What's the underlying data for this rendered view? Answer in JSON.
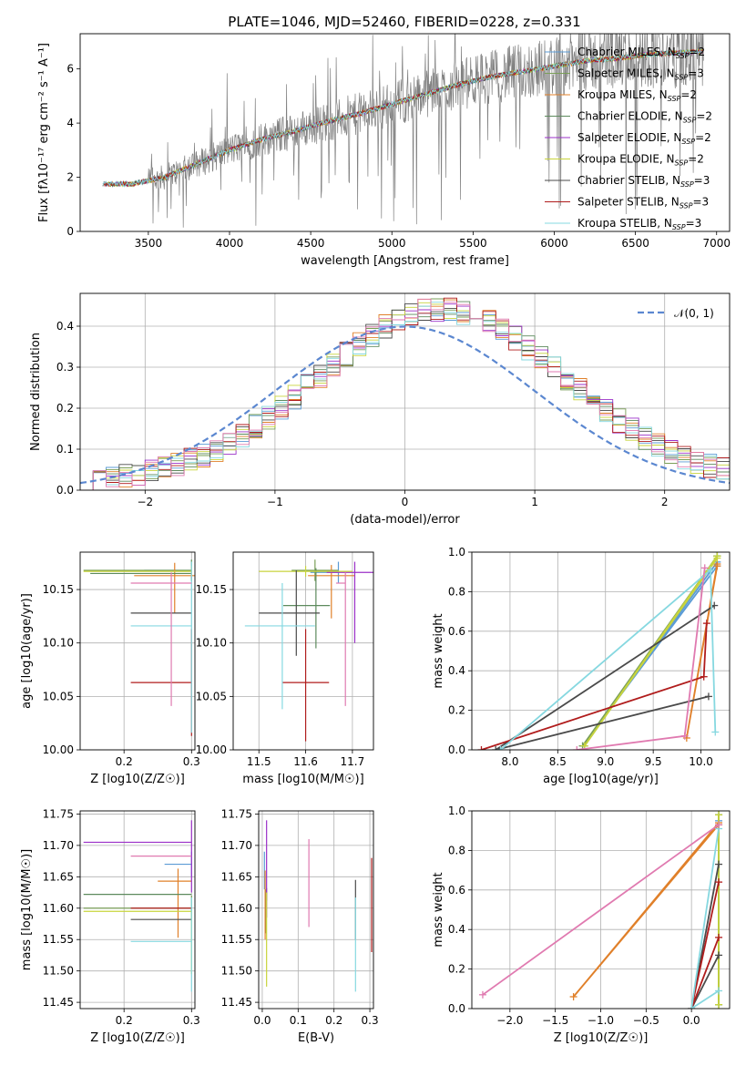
{
  "figure": {
    "title": "PLATE=1046, MJD=52460, FIBERID=0228, z=0.331"
  },
  "models": [
    {
      "name": "Chabrier MILES",
      "nssp": "2",
      "color": "#5b9bd5"
    },
    {
      "name": "Salpeter MILES",
      "nssp": "3",
      "color": "#7a9f58"
    },
    {
      "name": "Kroupa MILES",
      "nssp": "2",
      "color": "#e0802a"
    },
    {
      "name": "Chabrier ELODIE",
      "nssp": "2",
      "color": "#5d8a5d"
    },
    {
      "name": "Salpeter ELODIE",
      "nssp": "2",
      "color": "#9b30c8"
    },
    {
      "name": "Kroupa ELODIE",
      "nssp": "2",
      "color": "#c8d43c"
    },
    {
      "name": "Chabrier STELIB",
      "nssp": "3",
      "color": "#4a4a4a"
    },
    {
      "name": "Salpeter STELIB",
      "nssp": "3",
      "color": "#b01c1c"
    },
    {
      "name": "Kroupa STELIB",
      "nssp": "3",
      "color": "#86d8e0"
    }
  ],
  "pink_color": "#e07ab0",
  "chart_data": [
    {
      "id": "spectrum",
      "type": "line",
      "xlabel": "wavelength [Angstrom, rest frame]",
      "ylabel": "Flux [fλ10⁻¹⁷ erg cm⁻² s⁻¹ A⁻¹]",
      "xlim": [
        3080,
        7080
      ],
      "ylim": [
        0,
        7.3
      ],
      "xticks": [
        3500,
        4000,
        4500,
        5000,
        5500,
        6000,
        6500,
        7000
      ],
      "yticks": [
        0,
        2,
        4,
        6
      ],
      "data_color": "#808080",
      "x_start": 3220,
      "x_end": 6920,
      "continuum_points": [
        [
          3220,
          1.75
        ],
        [
          3400,
          1.75
        ],
        [
          3600,
          2.0
        ],
        [
          3800,
          2.5
        ],
        [
          4000,
          3.0
        ],
        [
          4200,
          3.4
        ],
        [
          4400,
          3.7
        ],
        [
          4600,
          4.05
        ],
        [
          4800,
          4.35
        ],
        [
          5000,
          4.7
        ],
        [
          5200,
          5.05
        ],
        [
          5400,
          5.4
        ],
        [
          5600,
          5.7
        ],
        [
          5800,
          5.9
        ],
        [
          6000,
          6.1
        ],
        [
          6200,
          6.3
        ],
        [
          6400,
          6.4
        ],
        [
          6600,
          6.55
        ],
        [
          6800,
          6.6
        ],
        [
          6920,
          6.65
        ]
      ],
      "legend_suffix": "N_SSP"
    },
    {
      "id": "residuals",
      "type": "histogram",
      "xlabel": "(data-model)/error",
      "ylabel": "Normed distribution",
      "xlim": [
        -2.5,
        2.5
      ],
      "ylim": [
        0,
        0.48
      ],
      "xticks": [
        -2,
        -1,
        0,
        1,
        2
      ],
      "yticks": [
        0.0,
        0.1,
        0.2,
        0.3,
        0.4
      ],
      "gauss_label": "𝒩(0, 1)",
      "gauss_mu": 0,
      "gauss_sigma": 1,
      "gauss_color": "#5b87d0"
    },
    {
      "id": "age_vs_Z",
      "type": "scatter",
      "xlabel": "Z [log10(Z/Z☉)]",
      "ylabel": "age  [log10(age/yr)]",
      "xlim": [
        0.135,
        0.305
      ],
      "ylim": [
        10.0,
        10.185
      ],
      "xticks": [
        0.2,
        0.3
      ],
      "yticks": [
        10.0,
        10.05,
        10.1,
        10.15
      ],
      "points": [
        {
          "m": 0,
          "x": 0.3,
          "xerr": [
            0.07,
            0.0
          ],
          "y": 10.168,
          "yerr": [
            0.01,
            0.01
          ]
        },
        {
          "m": 1,
          "x": 0.3,
          "xerr": [
            0.16,
            0.0
          ],
          "y": 10.168,
          "yerr": [
            0.01,
            0.01
          ]
        },
        {
          "m": 2,
          "x": 0.275,
          "xerr": [
            0.06,
            0.03
          ],
          "y": 10.163,
          "yerr": [
            0.035,
            0.012
          ]
        },
        {
          "m": 3,
          "x": 0.3,
          "xerr": [
            0.15,
            0.0
          ],
          "y": 10.165,
          "yerr": [
            0.005,
            0.005
          ]
        },
        {
          "m": 4,
          "x": 0.3,
          "xerr": [
            0.0,
            0.0
          ],
          "y": 10.166,
          "yerr": [
            0.005,
            0.005
          ]
        },
        {
          "m": 5,
          "x": 0.3,
          "xerr": [
            0.16,
            0.0
          ],
          "y": 10.167,
          "yerr": [
            0.005,
            0.005
          ]
        },
        {
          "m": 6,
          "x": 0.3,
          "xerr": [
            0.09,
            0.0
          ],
          "y": 10.128,
          "yerr": [
            0.0,
            0.0
          ]
        },
        {
          "m": 7,
          "x": 0.3,
          "xerr": [
            0.09,
            0.0
          ],
          "y": 10.063,
          "yerr": [
            0.05,
            0.05
          ]
        },
        {
          "m": 8,
          "x": 0.3,
          "xerr": [
            0.09,
            0.0
          ],
          "y": 10.116,
          "yerr": [
            0.1,
            0.06
          ]
        },
        {
          "m": "pink",
          "x": 0.27,
          "xerr": [
            0.06,
            0.03
          ],
          "y": 10.156,
          "yerr": [
            0.115,
            0.01
          ]
        }
      ]
    },
    {
      "id": "age_vs_mass",
      "type": "scatter",
      "xlabel": "mass [log10(M/M☉)]",
      "ylabel": "",
      "xlim": [
        11.445,
        11.745
      ],
      "ylim": [
        10.0,
        10.185
      ],
      "xticks": [
        11.5,
        11.6,
        11.7
      ],
      "yticks": [
        10.0,
        10.05,
        10.1,
        10.15
      ],
      "points": [
        {
          "m": 0,
          "x": 11.67,
          "xerr": [
            0.06,
            0.0
          ],
          "y": 10.166,
          "yerr": [
            0.01,
            0.01
          ]
        },
        {
          "m": 1,
          "x": 11.62,
          "xerr": [
            0.05,
            0.05
          ],
          "y": 10.168,
          "yerr": [
            0.01,
            0.01
          ]
        },
        {
          "m": 2,
          "x": 11.655,
          "xerr": [
            0.05,
            0.05
          ],
          "y": 10.163,
          "yerr": [
            0.04,
            0.01
          ]
        },
        {
          "m": 3,
          "x": 11.622,
          "xerr": [
            0.07,
            0.03
          ],
          "y": 10.135,
          "yerr": [
            0.04,
            0.035
          ]
        },
        {
          "m": 4,
          "x": 11.705,
          "xerr": [
            0.06,
            0.04
          ],
          "y": 10.166,
          "yerr": [
            0.066,
            0.01
          ]
        },
        {
          "m": 5,
          "x": 11.6,
          "xerr": [
            0.1,
            0.1
          ],
          "y": 10.167,
          "yerr": [
            0.005,
            0.005
          ]
        },
        {
          "m": 6,
          "x": 11.58,
          "xerr": [
            0.08,
            0.05
          ],
          "y": 10.128,
          "yerr": [
            0.04,
            0.04
          ]
        },
        {
          "m": 7,
          "x": 11.6,
          "xerr": [
            0.05,
            0.05
          ],
          "y": 10.063,
          "yerr": [
            0.055,
            0.05
          ]
        },
        {
          "m": 8,
          "x": 11.55,
          "xerr": [
            0.08,
            0.07
          ],
          "y": 10.116,
          "yerr": [
            0.078,
            0.04
          ]
        },
        {
          "m": "pink",
          "x": 11.685,
          "xerr": [
            0.02,
            0.0
          ],
          "y": 10.156,
          "yerr": [
            0.115,
            0.01
          ]
        }
      ]
    },
    {
      "id": "weight_vs_age",
      "type": "line",
      "xlabel": "age  [log10(age/yr)]",
      "ylabel": "mass weight",
      "xlim": [
        7.6,
        10.3
      ],
      "ylim": [
        0,
        1.0
      ],
      "xticks": [
        8.0,
        8.5,
        9.0,
        9.5,
        10.0
      ],
      "yticks": [
        0.0,
        0.2,
        0.4,
        0.6,
        0.8,
        1.0
      ],
      "lines": [
        {
          "m": 0,
          "pts": [
            [
              10.17,
              0.93
            ],
            [
              8.76,
              0.02
            ],
            [
              10.17,
              0.95
            ]
          ]
        },
        {
          "m": 1,
          "pts": [
            [
              10.17,
              0.98
            ],
            [
              8.76,
              0.02
            ],
            [
              10.17,
              0.98
            ]
          ]
        },
        {
          "m": 2,
          "pts": [
            [
              10.17,
              0.93
            ],
            [
              9.85,
              0.06
            ],
            [
              10.17,
              0.94
            ]
          ]
        },
        {
          "m": 3,
          "pts": [
            [
              10.17,
              0.98
            ],
            [
              8.78,
              0.02
            ],
            [
              10.17,
              0.98
            ]
          ]
        },
        {
          "m": 5,
          "pts": [
            [
              10.17,
              0.97
            ],
            [
              8.78,
              0.02
            ],
            [
              10.17,
              0.98
            ]
          ]
        },
        {
          "m": 6,
          "pts": [
            [
              10.08,
              0.27
            ],
            [
              7.85,
              0.0
            ],
            [
              10.14,
              0.73
            ]
          ]
        },
        {
          "m": 7,
          "pts": [
            [
              10.06,
              0.64
            ],
            [
              10.03,
              0.37
            ],
            [
              7.7,
              0.0
            ]
          ]
        },
        {
          "m": 8,
          "pts": [
            [
              10.15,
              0.09
            ],
            [
              10.1,
              0.91
            ],
            [
              7.9,
              0.0
            ]
          ]
        },
        {
          "m": "pink",
          "pts": [
            [
              10.04,
              0.92
            ],
            [
              9.83,
              0.07
            ],
            [
              8.7,
              0.0
            ]
          ]
        }
      ]
    },
    {
      "id": "mass_vs_Z",
      "type": "scatter",
      "xlabel": "Z [log10(Z/Z☉)]",
      "ylabel": "mass [log10(M/M☉)]",
      "xlim": [
        0.135,
        0.305
      ],
      "ylim": [
        11.44,
        11.755
      ],
      "xticks": [
        0.2,
        0.3
      ],
      "yticks": [
        11.45,
        11.5,
        11.55,
        11.6,
        11.65,
        11.7,
        11.75
      ],
      "points": [
        {
          "m": 0,
          "x": 0.3,
          "xerr": [
            0.04,
            0.0
          ],
          "y": 11.67,
          "yerr": [
            0.02,
            0.02
          ]
        },
        {
          "m": 1,
          "x": 0.3,
          "xerr": [
            0.16,
            0.0
          ],
          "y": 11.6,
          "yerr": [
            0.02,
            0.02
          ]
        },
        {
          "m": 2,
          "x": 0.28,
          "xerr": [
            0.03,
            0.02
          ],
          "y": 11.643,
          "yerr": [
            0.09,
            0.02
          ]
        },
        {
          "m": 3,
          "x": 0.3,
          "xerr": [
            0.16,
            0.0
          ],
          "y": 11.622,
          "yerr": [
            0.0,
            0.0
          ]
        },
        {
          "m": 4,
          "x": 0.3,
          "xerr": [
            0.16,
            0.0
          ],
          "y": 11.705,
          "yerr": [
            0.08,
            0.035
          ]
        },
        {
          "m": 5,
          "x": 0.3,
          "xerr": [
            0.16,
            0.0
          ],
          "y": 11.595,
          "yerr": [
            0.1,
            0.0
          ]
        },
        {
          "m": 6,
          "x": 0.3,
          "xerr": [
            0.09,
            0.0
          ],
          "y": 11.582,
          "yerr": [
            0.0,
            0.0
          ]
        },
        {
          "m": 7,
          "x": 0.3,
          "xerr": [
            0.09,
            0.0
          ],
          "y": 11.6,
          "yerr": [
            0.0,
            0.0
          ]
        },
        {
          "m": 8,
          "x": 0.3,
          "xerr": [
            0.09,
            0.0
          ],
          "y": 11.547,
          "yerr": [
            0.08,
            0.07
          ]
        },
        {
          "m": "pink",
          "x": 0.27,
          "xerr": [
            0.06,
            0.03
          ],
          "y": 11.683,
          "yerr": [
            0.0,
            0.0
          ]
        }
      ]
    },
    {
      "id": "mass_vs_ebv",
      "type": "scatter",
      "xlabel": "E(B-V)",
      "ylabel": "",
      "xlim": [
        -0.01,
        0.31
      ],
      "ylim": [
        11.44,
        11.755
      ],
      "xticks": [
        0.0,
        0.1,
        0.2,
        0.3
      ],
      "yticks": [
        11.45,
        11.5,
        11.55,
        11.6,
        11.65,
        11.7,
        11.75
      ],
      "points": [
        {
          "m": 0,
          "x": 0.006,
          "xerr": [
            0,
            0
          ],
          "y": 11.67,
          "yerr": [
            0.04,
            0.02
          ]
        },
        {
          "m": 1,
          "x": 0.01,
          "xerr": [
            0,
            0
          ],
          "y": 11.6,
          "yerr": [
            0.04,
            0.03
          ]
        },
        {
          "m": 2,
          "x": 0.008,
          "xerr": [
            0,
            0
          ],
          "y": 11.61,
          "yerr": [
            0.06,
            0.05
          ]
        },
        {
          "m": 3,
          "x": 0.012,
          "xerr": [
            0,
            0
          ],
          "y": 11.622,
          "yerr": [
            0.01,
            0.01
          ]
        },
        {
          "m": 4,
          "x": 0.012,
          "xerr": [
            0,
            0
          ],
          "y": 11.705,
          "yerr": [
            0.12,
            0.035
          ]
        },
        {
          "m": 5,
          "x": 0.012,
          "xerr": [
            0,
            0
          ],
          "y": 11.595,
          "yerr": [
            0.12,
            0.03
          ]
        },
        {
          "m": 6,
          "x": 0.26,
          "xerr": [
            0,
            0
          ],
          "y": 11.58,
          "yerr": [
            0.03,
            0.065
          ]
        },
        {
          "m": 7,
          "x": 0.305,
          "xerr": [
            0,
            0
          ],
          "y": 11.6,
          "yerr": [
            0.07,
            0.08
          ]
        },
        {
          "m": 8,
          "x": 0.26,
          "xerr": [
            0,
            0
          ],
          "y": 11.547,
          "yerr": [
            0.08,
            0.07
          ]
        },
        {
          "m": "pink",
          "x": 0.13,
          "xerr": [
            0,
            0
          ],
          "y": 11.64,
          "yerr": [
            0.07,
            0.07
          ]
        }
      ]
    },
    {
      "id": "weight_vs_Z",
      "type": "line",
      "xlabel": "Z [log10(Z/Z☉)]",
      "ylabel": "mass weight",
      "xlim": [
        -2.42,
        0.42
      ],
      "ylim": [
        0,
        1.0
      ],
      "xticks": [
        -2.0,
        -1.5,
        -1.0,
        -0.5,
        0.0
      ],
      "yticks": [
        0.0,
        0.2,
        0.4,
        0.6,
        0.8,
        1.0
      ],
      "lines": [
        {
          "m": 0,
          "pts": [
            [
              0.3,
              0.93
            ],
            [
              0.3,
              0.95
            ]
          ]
        },
        {
          "m": 1,
          "pts": [
            [
              0.3,
              0.98
            ],
            [
              0.3,
              0.02
            ]
          ]
        },
        {
          "m": 2,
          "pts": [
            [
              0.3,
              0.94
            ],
            [
              -1.3,
              0.06
            ],
            [
              0.3,
              0.93
            ]
          ]
        },
        {
          "m": 3,
          "pts": [
            [
              0.3,
              0.98
            ],
            [
              0.3,
              0.02
            ]
          ]
        },
        {
          "m": 5,
          "pts": [
            [
              0.3,
              0.98
            ],
            [
              0.3,
              0.02
            ]
          ]
        },
        {
          "m": 6,
          "pts": [
            [
              0.3,
              0.73
            ],
            [
              0.0,
              0.0
            ],
            [
              0.3,
              0.27
            ]
          ]
        },
        {
          "m": 7,
          "pts": [
            [
              0.3,
              0.64
            ],
            [
              0.0,
              0.0
            ],
            [
              0.3,
              0.36
            ]
          ]
        },
        {
          "m": 8,
          "pts": [
            [
              0.3,
              0.91
            ],
            [
              0.0,
              0.0
            ],
            [
              0.3,
              0.09
            ]
          ]
        },
        {
          "m": "pink",
          "pts": [
            [
              0.3,
              0.93
            ],
            [
              -2.3,
              0.07
            ]
          ]
        }
      ]
    }
  ]
}
